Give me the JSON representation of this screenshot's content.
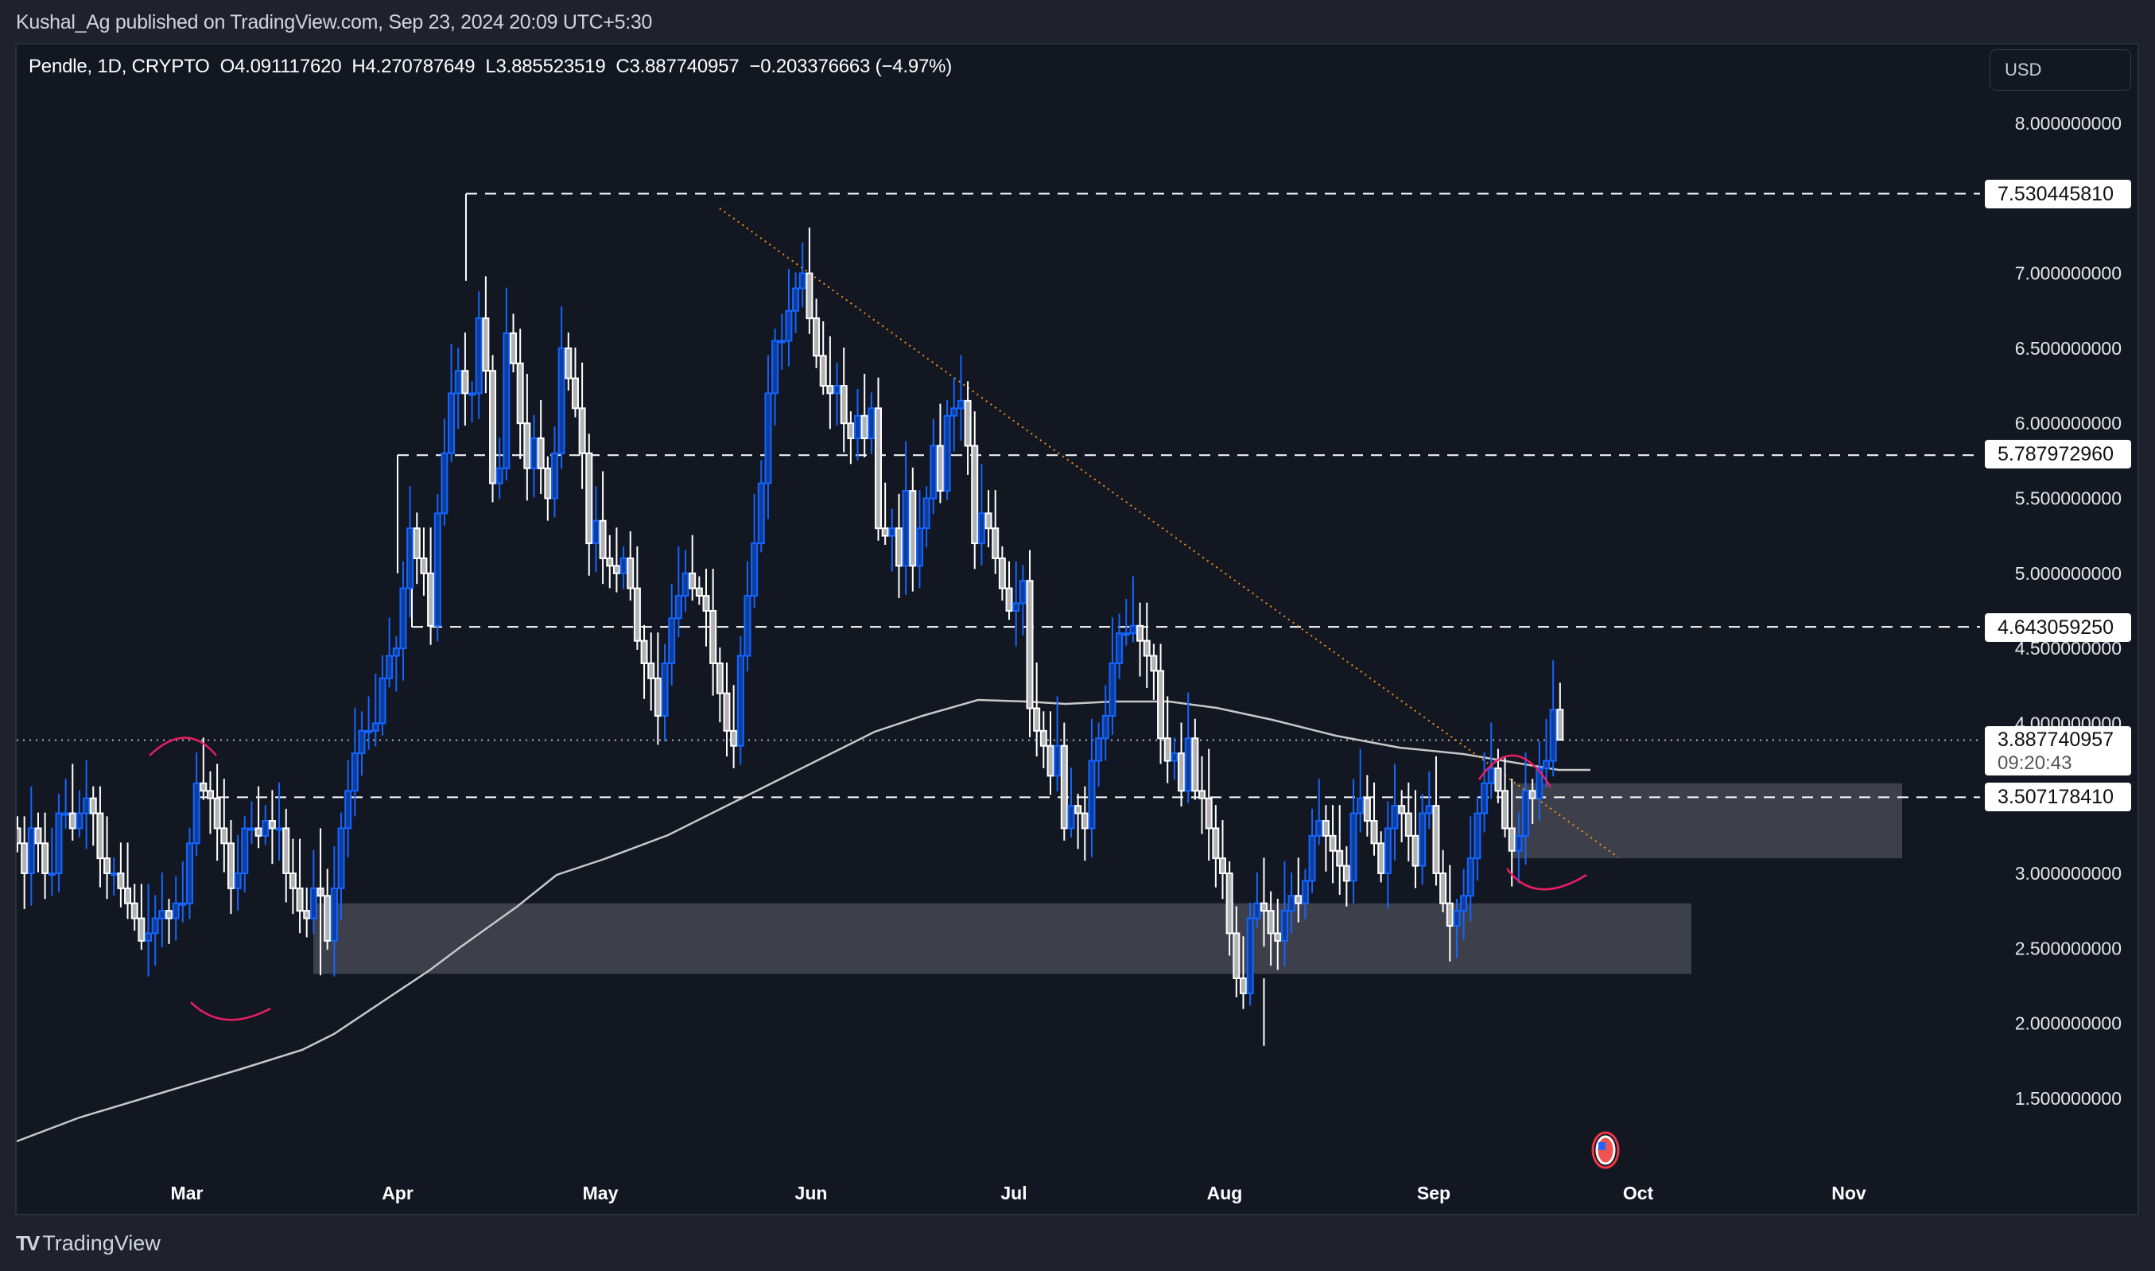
{
  "header": {
    "published": "Kushal_Ag published on TradingView.com, Sep 23, 2024 20:09 UTC+5:30"
  },
  "legend": {
    "symbol": "Pendle, 1D, CRYPTO",
    "open": "O4.091117620",
    "high": "H4.270787649",
    "low": "L3.885523519",
    "close": "C3.887740957",
    "change": "−0.203376663 (−4.97%)"
  },
  "currency_button": "USD",
  "price_tags": {
    "level_high": "7.530445810",
    "level_mid_high": "5.787972960",
    "level_mid": "4.643059250",
    "last_price": "3.887740957",
    "countdown": "09:20:43",
    "level_low": "3.507178410"
  },
  "footer": {
    "brand": "TradingView"
  },
  "colors": {
    "background": "#121722",
    "up_border": "#1565ff",
    "up_fill": "#0d3d9e",
    "down_border": "#ffffff",
    "down_fill": "#b2b2b2",
    "zone": "#3d404b",
    "ma_line": "#c8c8c8",
    "trendline": "#f7931a",
    "annotation": "#e91e63"
  },
  "chart_data": {
    "type": "candlestick",
    "title": "Pendle, 1D, CRYPTO",
    "xlabel": "",
    "ylabel": "USD",
    "ylim": [
      1.2,
      8.3
    ],
    "y_ticks": [
      "8.000000000",
      "7.000000000",
      "6.500000000",
      "6.000000000",
      "5.500000000",
      "5.000000000",
      "4.500000000",
      "4.000000000",
      "3.000000000",
      "2.500000000",
      "2.000000000",
      "1.500000000"
    ],
    "x_ticks": [
      "Mar",
      "Apr",
      "May",
      "Jun",
      "Jul",
      "Aug",
      "Sep",
      "Oct",
      "Nov"
    ],
    "start_date": "2024-02-07",
    "end_date": "2024-09-23",
    "last_ohlc": {
      "open": 4.09111762,
      "high": 4.270787649,
      "low": 3.885523519,
      "close": 3.887740957,
      "change": -0.203376663,
      "change_pct": -4.97
    },
    "closes": [
      3.2,
      3.0,
      3.3,
      3.2,
      3.0,
      3.0,
      3.4,
      3.4,
      3.3,
      3.4,
      3.5,
      3.4,
      3.1,
      3.0,
      3.0,
      2.9,
      2.8,
      2.7,
      2.55,
      2.6,
      2.7,
      2.75,
      2.7,
      2.8,
      2.8,
      3.2,
      3.6,
      3.55,
      3.5,
      3.3,
      3.2,
      2.9,
      3.0,
      3.3,
      3.3,
      3.25,
      3.35,
      3.3,
      3.3,
      3.0,
      2.9,
      2.75,
      2.7,
      2.9,
      2.85,
      2.55,
      2.9,
      3.3,
      3.55,
      3.8,
      3.95,
      3.95,
      4.0,
      4.3,
      4.45,
      4.5,
      4.9,
      5.3,
      5.1,
      5.0,
      4.65,
      5.4,
      5.8,
      6.2,
      6.35,
      6.2,
      6.2,
      6.7,
      6.35,
      5.6,
      5.7,
      6.6,
      6.4,
      6.0,
      5.7,
      5.9,
      5.7,
      5.5,
      5.8,
      6.5,
      6.3,
      6.1,
      5.8,
      5.2,
      5.35,
      5.1,
      5.05,
      5.0,
      5.1,
      4.9,
      4.55,
      4.4,
      4.3,
      4.05,
      4.4,
      4.7,
      4.85,
      5.0,
      4.9,
      4.85,
      4.75,
      4.4,
      4.2,
      3.95,
      3.85,
      4.45,
      4.85,
      5.2,
      5.6,
      6.2,
      6.55,
      6.55,
      6.75,
      6.9,
      7.0,
      6.7,
      6.45,
      6.25,
      6.2,
      6.25,
      6.0,
      5.9,
      6.05,
      5.9,
      6.1,
      5.3,
      5.25,
      5.3,
      5.05,
      5.55,
      5.05,
      5.3,
      5.5,
      5.85,
      5.55,
      6.05,
      6.1,
      6.15,
      5.85,
      5.2,
      5.4,
      5.3,
      5.1,
      4.9,
      4.75,
      4.8,
      4.95,
      4.1,
      3.95,
      3.85,
      3.65,
      3.85,
      3.3,
      3.45,
      3.4,
      3.3,
      3.75,
      3.9,
      4.05,
      4.4,
      4.6,
      4.6,
      4.65,
      4.55,
      4.45,
      4.35,
      3.9,
      3.75,
      3.8,
      3.55,
      3.9,
      3.55,
      3.5,
      3.3,
      3.1,
      3.0,
      2.6,
      2.3,
      2.2,
      2.7,
      2.8,
      2.75,
      2.6,
      2.55,
      2.75,
      2.85,
      2.8,
      2.95,
      3.25,
      3.35,
      3.25,
      3.15,
      3.05,
      2.95,
      3.4,
      3.5,
      3.35,
      3.2,
      3.0,
      3.3,
      3.45,
      3.4,
      3.25,
      3.05,
      3.4,
      3.45,
      3.0,
      2.8,
      2.65,
      2.75,
      2.85,
      3.1,
      3.4,
      3.6,
      3.7,
      3.55,
      3.3,
      3.15,
      3.25,
      3.55,
      3.5,
      3.7,
      3.75,
      4.09,
      3.89
    ],
    "annotations": {
      "horizontal_levels": [
        7.53044581,
        5.78797296,
        4.64305925,
        3.50717841
      ],
      "zones": [
        {
          "from": 2.33,
          "to": 2.8
        },
        {
          "from": 3.1,
          "to": 3.6
        }
      ],
      "trendline": "descending dotted from ~7.4 (late May) to ~3.1 (late Sep)",
      "moving_average": "smooth 200-day-style MA rising from 1.35 to ~4.1 then flattening to ~3.65"
    }
  }
}
